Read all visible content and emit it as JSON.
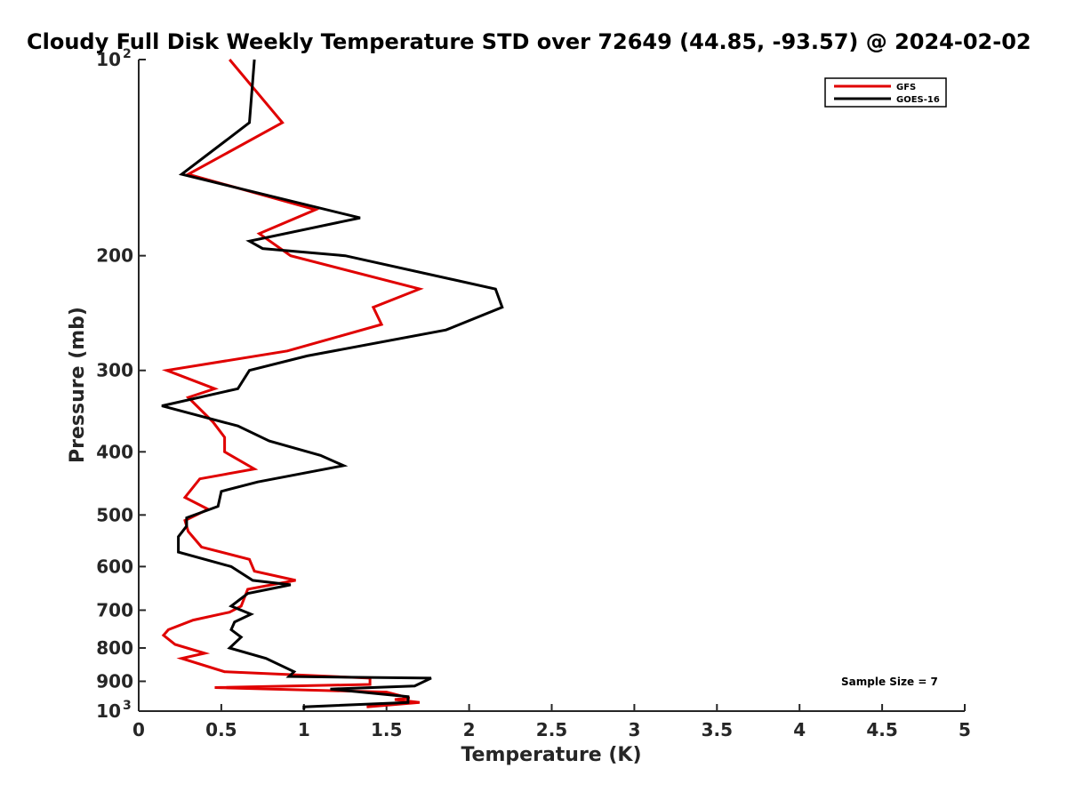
{
  "chart_data": {
    "type": "line",
    "title": "Cloudy Full Disk Weekly Temperature STD over 72649 (44.85, -93.57) @ 2024-02-02",
    "xlabel": "Temperature (K)",
    "ylabel": "Pressure (mb)",
    "xlim": [
      0,
      5
    ],
    "ylim": [
      100,
      1000
    ],
    "y_scale": "log",
    "y_reversed": true,
    "grid": false,
    "legend_position": "top-right",
    "annotation": "Sample Size = 7",
    "x_ticks": [
      "0",
      "0.5",
      "1",
      "1.5",
      "2",
      "2.5",
      "3",
      "3.5",
      "4",
      "4.5",
      "5"
    ],
    "y_ticks": [
      {
        "value": 200,
        "label": "200"
      },
      {
        "value": 300,
        "label": "300"
      },
      {
        "value": 400,
        "label": "400"
      },
      {
        "value": 500,
        "label": "500"
      },
      {
        "value": 600,
        "label": "600"
      },
      {
        "value": 700,
        "label": "700"
      },
      {
        "value": 800,
        "label": "800"
      },
      {
        "value": 900,
        "label": "900"
      }
    ],
    "y_tick_power_base": "10",
    "y_tick_powers": [
      {
        "value": 100,
        "exp": "2"
      },
      {
        "value": 1000,
        "exp": "3"
      }
    ],
    "series": [
      {
        "name": "GFS",
        "color": "#e00000",
        "points": [
          [
            0.55,
            100
          ],
          [
            0.87,
            125
          ],
          [
            0.3,
            150
          ],
          [
            1.07,
            170
          ],
          [
            0.73,
            185
          ],
          [
            0.92,
            200
          ],
          [
            1.7,
            225
          ],
          [
            1.42,
            240
          ],
          [
            1.47,
            255
          ],
          [
            0.9,
            280
          ],
          [
            0.17,
            300
          ],
          [
            0.46,
            320
          ],
          [
            0.3,
            330
          ],
          [
            0.45,
            360
          ],
          [
            0.52,
            380
          ],
          [
            0.52,
            400
          ],
          [
            0.7,
            425
          ],
          [
            0.37,
            440
          ],
          [
            0.28,
            470
          ],
          [
            0.42,
            490
          ],
          [
            0.28,
            510
          ],
          [
            0.3,
            530
          ],
          [
            0.38,
            560
          ],
          [
            0.67,
            585
          ],
          [
            0.7,
            610
          ],
          [
            0.95,
            630
          ],
          [
            0.66,
            650
          ],
          [
            0.62,
            690
          ],
          [
            0.55,
            705
          ],
          [
            0.33,
            725
          ],
          [
            0.18,
            750
          ],
          [
            0.15,
            765
          ],
          [
            0.22,
            790
          ],
          [
            0.4,
            815
          ],
          [
            0.26,
            830
          ],
          [
            0.52,
            870
          ],
          [
            1.4,
            890
          ],
          [
            1.4,
            910
          ],
          [
            0.46,
            920
          ],
          [
            1.5,
            935
          ],
          [
            1.64,
            955
          ],
          [
            1.55,
            960
          ],
          [
            1.7,
            970
          ],
          [
            1.38,
            985
          ]
        ]
      },
      {
        "name": "GOES-16",
        "color": "#000000",
        "points": [
          [
            0.7,
            100
          ],
          [
            0.67,
            125
          ],
          [
            0.26,
            150
          ],
          [
            1.34,
            175
          ],
          [
            0.67,
            190
          ],
          [
            0.75,
            195
          ],
          [
            1.25,
            200
          ],
          [
            2.16,
            225
          ],
          [
            2.2,
            240
          ],
          [
            1.86,
            260
          ],
          [
            1.02,
            285
          ],
          [
            0.67,
            300
          ],
          [
            0.6,
            320
          ],
          [
            0.14,
            340
          ],
          [
            0.6,
            365
          ],
          [
            0.79,
            385
          ],
          [
            1.1,
            405
          ],
          [
            1.24,
            420
          ],
          [
            0.72,
            445
          ],
          [
            0.5,
            460
          ],
          [
            0.48,
            485
          ],
          [
            0.29,
            505
          ],
          [
            0.29,
            520
          ],
          [
            0.24,
            540
          ],
          [
            0.24,
            570
          ],
          [
            0.56,
            600
          ],
          [
            0.69,
            630
          ],
          [
            0.92,
            640
          ],
          [
            0.66,
            660
          ],
          [
            0.56,
            690
          ],
          [
            0.68,
            710
          ],
          [
            0.58,
            730
          ],
          [
            0.56,
            750
          ],
          [
            0.62,
            770
          ],
          [
            0.55,
            800
          ],
          [
            0.77,
            830
          ],
          [
            0.94,
            870
          ],
          [
            0.91,
            885
          ],
          [
            1.77,
            890
          ],
          [
            1.67,
            915
          ],
          [
            1.16,
            925
          ],
          [
            1.63,
            950
          ],
          [
            1.63,
            970
          ],
          [
            1.0,
            985
          ],
          [
            1.0,
            995
          ]
        ]
      }
    ]
  }
}
